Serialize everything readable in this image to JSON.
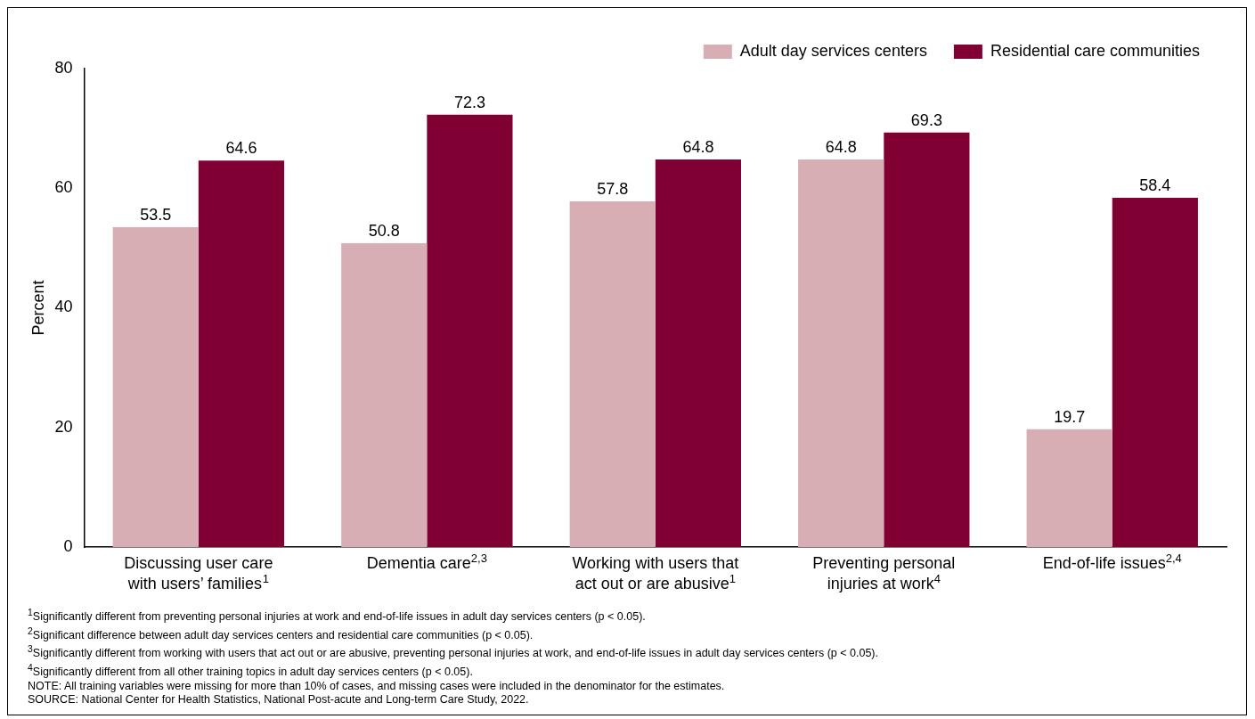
{
  "chart_data": {
    "type": "bar",
    "ylabel": "Percent",
    "categories": [
      "Discussing user care with users’ families$^{1}$",
      "Dementia care$^{2,3}$",
      "Working with users that act out or are abusive$^{1}$",
      "Preventing personal injuries at work$^{4}$",
      "End-of-life issues$^{2,4}$"
    ],
    "series": [
      {
        "name": "Adult day services centers",
        "color": "#d6aeb4",
        "values": [
          53.5,
          50.8,
          57.8,
          64.8,
          19.7
        ]
      },
      {
        "name": "Residential care communities",
        "color": "#800034",
        "values": [
          64.6,
          72.3,
          64.8,
          69.3,
          58.4
        ]
      }
    ],
    "ylim": [
      0,
      80
    ],
    "yticks": [
      0,
      20,
      40,
      60,
      80
    ],
    "grid": false,
    "legend": "top right",
    "data_labels": true,
    "annotations": [
      "$^{1}$Significantly different from preventing personal injuries at work and end-of-life issues in adult day services centers (p < 0.05).",
      "$^{2}$Significant difference between adult day services centers and residential care communities (p < 0.05).",
      "$^{3}$Significantly different from working with users that act out or are abusive, preventing personal injuries at work, and end-of-life issues in adult day services centers (p < 0.05).",
      "$^{4}$Significantly different from all other training topics in adult day services centers (p < 0.05).",
      "NOTE: All training variables were missing for more than 10% of cases, and missing cases were included in the denominator for the estimates.",
      "SOURCE: National Center for Health Statistics, National Post-acute and Long-term Care Study, 2022."
    ]
  }
}
